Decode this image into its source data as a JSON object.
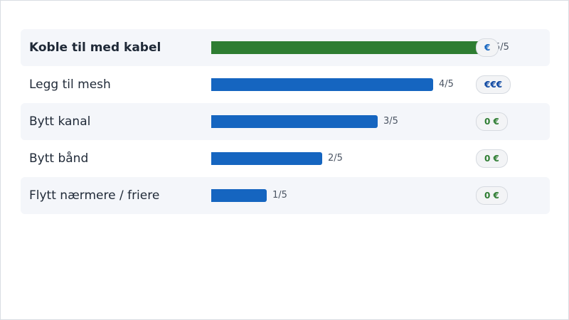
{
  "chart_data": {
    "type": "bar",
    "orientation": "horizontal",
    "xlim": [
      0,
      5
    ],
    "categories": [
      "Koble til med kabel",
      "Legg til mesh",
      "Bytt kanal",
      "Bytt bånd",
      "Flytt nærmere / friere"
    ],
    "values": [
      5,
      4,
      3,
      2,
      1
    ],
    "value_labels": [
      "5/5",
      "4/5",
      "3/5",
      "2/5",
      "1/5"
    ],
    "cost_labels": [
      "€",
      "€€€",
      "0 €",
      "0 €",
      "0 €"
    ],
    "highlighted": [
      true,
      false,
      false,
      false,
      false
    ],
    "colors": {
      "highlight_bar": "#2e7d32",
      "bar": "#1565c0",
      "cost_paid": "#1565c0",
      "cost_expensive": "#0d47a1",
      "cost_free": "#2e7d32"
    },
    "cost_colors": [
      "#1565c0",
      "#0d47a1",
      "#2e7d32",
      "#2e7d32",
      "#2e7d32"
    ]
  }
}
